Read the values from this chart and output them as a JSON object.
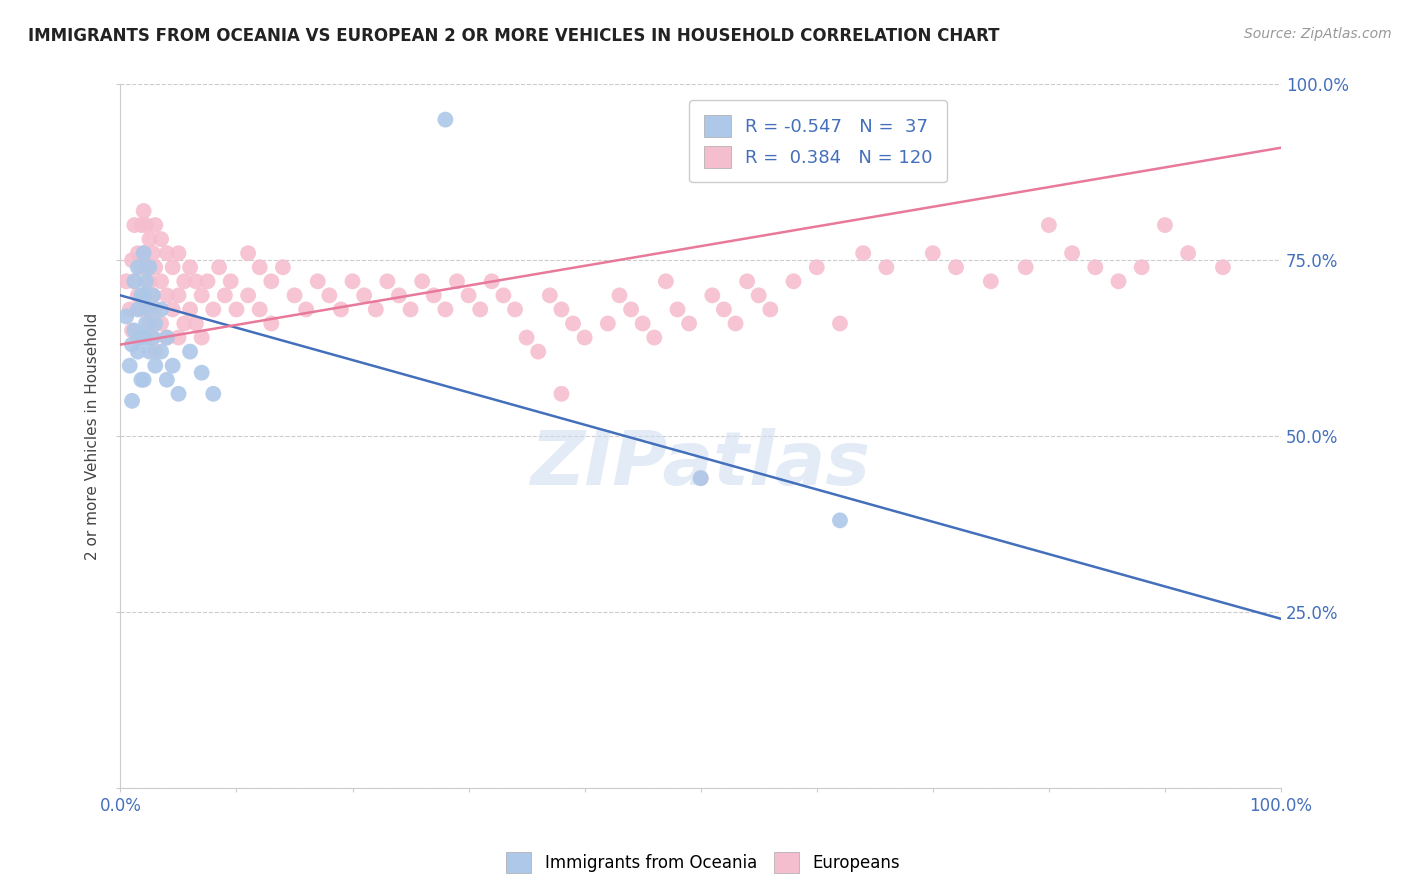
{
  "title": "IMMIGRANTS FROM OCEANIA VS EUROPEAN 2 OR MORE VEHICLES IN HOUSEHOLD CORRELATION CHART",
  "source": "Source: ZipAtlas.com",
  "ylabel": "2 or more Vehicles in Household",
  "xlim": [
    0.0,
    1.0
  ],
  "ylim": [
    0.0,
    1.0
  ],
  "blue_R": -0.547,
  "blue_N": 37,
  "pink_R": 0.384,
  "pink_N": 120,
  "blue_color": "#adc8e8",
  "pink_color": "#f5bece",
  "blue_line_color": "#4470bb",
  "pink_line_color": "#e8799a",
  "watermark": "ZIPatlas",
  "blue_line_x0": 0.0,
  "blue_line_y0": 0.7,
  "blue_line_x1": 1.0,
  "blue_line_y1": 0.24,
  "pink_line_x0": 0.0,
  "pink_line_y0": 0.63,
  "pink_line_x1": 1.0,
  "pink_line_y1": 0.91,
  "blue_points": [
    [
      0.005,
      0.67
    ],
    [
      0.008,
      0.6
    ],
    [
      0.01,
      0.63
    ],
    [
      0.01,
      0.55
    ],
    [
      0.012,
      0.72
    ],
    [
      0.012,
      0.65
    ],
    [
      0.015,
      0.74
    ],
    [
      0.015,
      0.68
    ],
    [
      0.015,
      0.62
    ],
    [
      0.018,
      0.7
    ],
    [
      0.018,
      0.64
    ],
    [
      0.018,
      0.58
    ],
    [
      0.02,
      0.76
    ],
    [
      0.02,
      0.7
    ],
    [
      0.02,
      0.64
    ],
    [
      0.02,
      0.58
    ],
    [
      0.022,
      0.72
    ],
    [
      0.022,
      0.66
    ],
    [
      0.025,
      0.74
    ],
    [
      0.025,
      0.68
    ],
    [
      0.025,
      0.62
    ],
    [
      0.028,
      0.7
    ],
    [
      0.028,
      0.64
    ],
    [
      0.03,
      0.66
    ],
    [
      0.03,
      0.6
    ],
    [
      0.035,
      0.68
    ],
    [
      0.035,
      0.62
    ],
    [
      0.04,
      0.64
    ],
    [
      0.04,
      0.58
    ],
    [
      0.045,
      0.6
    ],
    [
      0.05,
      0.56
    ],
    [
      0.06,
      0.62
    ],
    [
      0.07,
      0.59
    ],
    [
      0.08,
      0.56
    ],
    [
      0.28,
      0.95
    ],
    [
      0.5,
      0.44
    ],
    [
      0.62,
      0.38
    ]
  ],
  "pink_points": [
    [
      0.005,
      0.72
    ],
    [
      0.008,
      0.68
    ],
    [
      0.01,
      0.75
    ],
    [
      0.01,
      0.65
    ],
    [
      0.012,
      0.8
    ],
    [
      0.012,
      0.72
    ],
    [
      0.015,
      0.76
    ],
    [
      0.015,
      0.7
    ],
    [
      0.015,
      0.64
    ],
    [
      0.018,
      0.8
    ],
    [
      0.018,
      0.74
    ],
    [
      0.018,
      0.68
    ],
    [
      0.02,
      0.82
    ],
    [
      0.02,
      0.76
    ],
    [
      0.02,
      0.7
    ],
    [
      0.02,
      0.64
    ],
    [
      0.022,
      0.8
    ],
    [
      0.022,
      0.74
    ],
    [
      0.022,
      0.68
    ],
    [
      0.025,
      0.78
    ],
    [
      0.025,
      0.72
    ],
    [
      0.025,
      0.66
    ],
    [
      0.028,
      0.76
    ],
    [
      0.028,
      0.7
    ],
    [
      0.028,
      0.64
    ],
    [
      0.03,
      0.8
    ],
    [
      0.03,
      0.74
    ],
    [
      0.03,
      0.68
    ],
    [
      0.03,
      0.62
    ],
    [
      0.035,
      0.78
    ],
    [
      0.035,
      0.72
    ],
    [
      0.035,
      0.66
    ],
    [
      0.04,
      0.76
    ],
    [
      0.04,
      0.7
    ],
    [
      0.04,
      0.64
    ],
    [
      0.045,
      0.74
    ],
    [
      0.045,
      0.68
    ],
    [
      0.05,
      0.76
    ],
    [
      0.05,
      0.7
    ],
    [
      0.05,
      0.64
    ],
    [
      0.055,
      0.72
    ],
    [
      0.055,
      0.66
    ],
    [
      0.06,
      0.74
    ],
    [
      0.06,
      0.68
    ],
    [
      0.065,
      0.72
    ],
    [
      0.065,
      0.66
    ],
    [
      0.07,
      0.7
    ],
    [
      0.07,
      0.64
    ],
    [
      0.075,
      0.72
    ],
    [
      0.08,
      0.68
    ],
    [
      0.085,
      0.74
    ],
    [
      0.09,
      0.7
    ],
    [
      0.095,
      0.72
    ],
    [
      0.1,
      0.68
    ],
    [
      0.11,
      0.76
    ],
    [
      0.11,
      0.7
    ],
    [
      0.12,
      0.74
    ],
    [
      0.12,
      0.68
    ],
    [
      0.13,
      0.72
    ],
    [
      0.13,
      0.66
    ],
    [
      0.14,
      0.74
    ],
    [
      0.15,
      0.7
    ],
    [
      0.16,
      0.68
    ],
    [
      0.17,
      0.72
    ],
    [
      0.18,
      0.7
    ],
    [
      0.19,
      0.68
    ],
    [
      0.2,
      0.72
    ],
    [
      0.21,
      0.7
    ],
    [
      0.22,
      0.68
    ],
    [
      0.23,
      0.72
    ],
    [
      0.24,
      0.7
    ],
    [
      0.25,
      0.68
    ],
    [
      0.26,
      0.72
    ],
    [
      0.27,
      0.7
    ],
    [
      0.28,
      0.68
    ],
    [
      0.29,
      0.72
    ],
    [
      0.3,
      0.7
    ],
    [
      0.31,
      0.68
    ],
    [
      0.32,
      0.72
    ],
    [
      0.33,
      0.7
    ],
    [
      0.34,
      0.68
    ],
    [
      0.35,
      0.64
    ],
    [
      0.36,
      0.62
    ],
    [
      0.37,
      0.7
    ],
    [
      0.38,
      0.68
    ],
    [
      0.39,
      0.66
    ],
    [
      0.4,
      0.64
    ],
    [
      0.38,
      0.56
    ],
    [
      0.42,
      0.66
    ],
    [
      0.43,
      0.7
    ],
    [
      0.44,
      0.68
    ],
    [
      0.45,
      0.66
    ],
    [
      0.46,
      0.64
    ],
    [
      0.47,
      0.72
    ],
    [
      0.48,
      0.68
    ],
    [
      0.49,
      0.66
    ],
    [
      0.5,
      0.44
    ],
    [
      0.51,
      0.7
    ],
    [
      0.52,
      0.68
    ],
    [
      0.53,
      0.66
    ],
    [
      0.54,
      0.72
    ],
    [
      0.55,
      0.7
    ],
    [
      0.56,
      0.68
    ],
    [
      0.58,
      0.72
    ],
    [
      0.6,
      0.74
    ],
    [
      0.62,
      0.66
    ],
    [
      0.64,
      0.76
    ],
    [
      0.66,
      0.74
    ],
    [
      0.7,
      0.76
    ],
    [
      0.72,
      0.74
    ],
    [
      0.75,
      0.72
    ],
    [
      0.78,
      0.74
    ],
    [
      0.8,
      0.8
    ],
    [
      0.82,
      0.76
    ],
    [
      0.84,
      0.74
    ],
    [
      0.86,
      0.72
    ],
    [
      0.88,
      0.74
    ],
    [
      0.9,
      0.8
    ],
    [
      0.92,
      0.76
    ],
    [
      0.95,
      0.74
    ]
  ]
}
